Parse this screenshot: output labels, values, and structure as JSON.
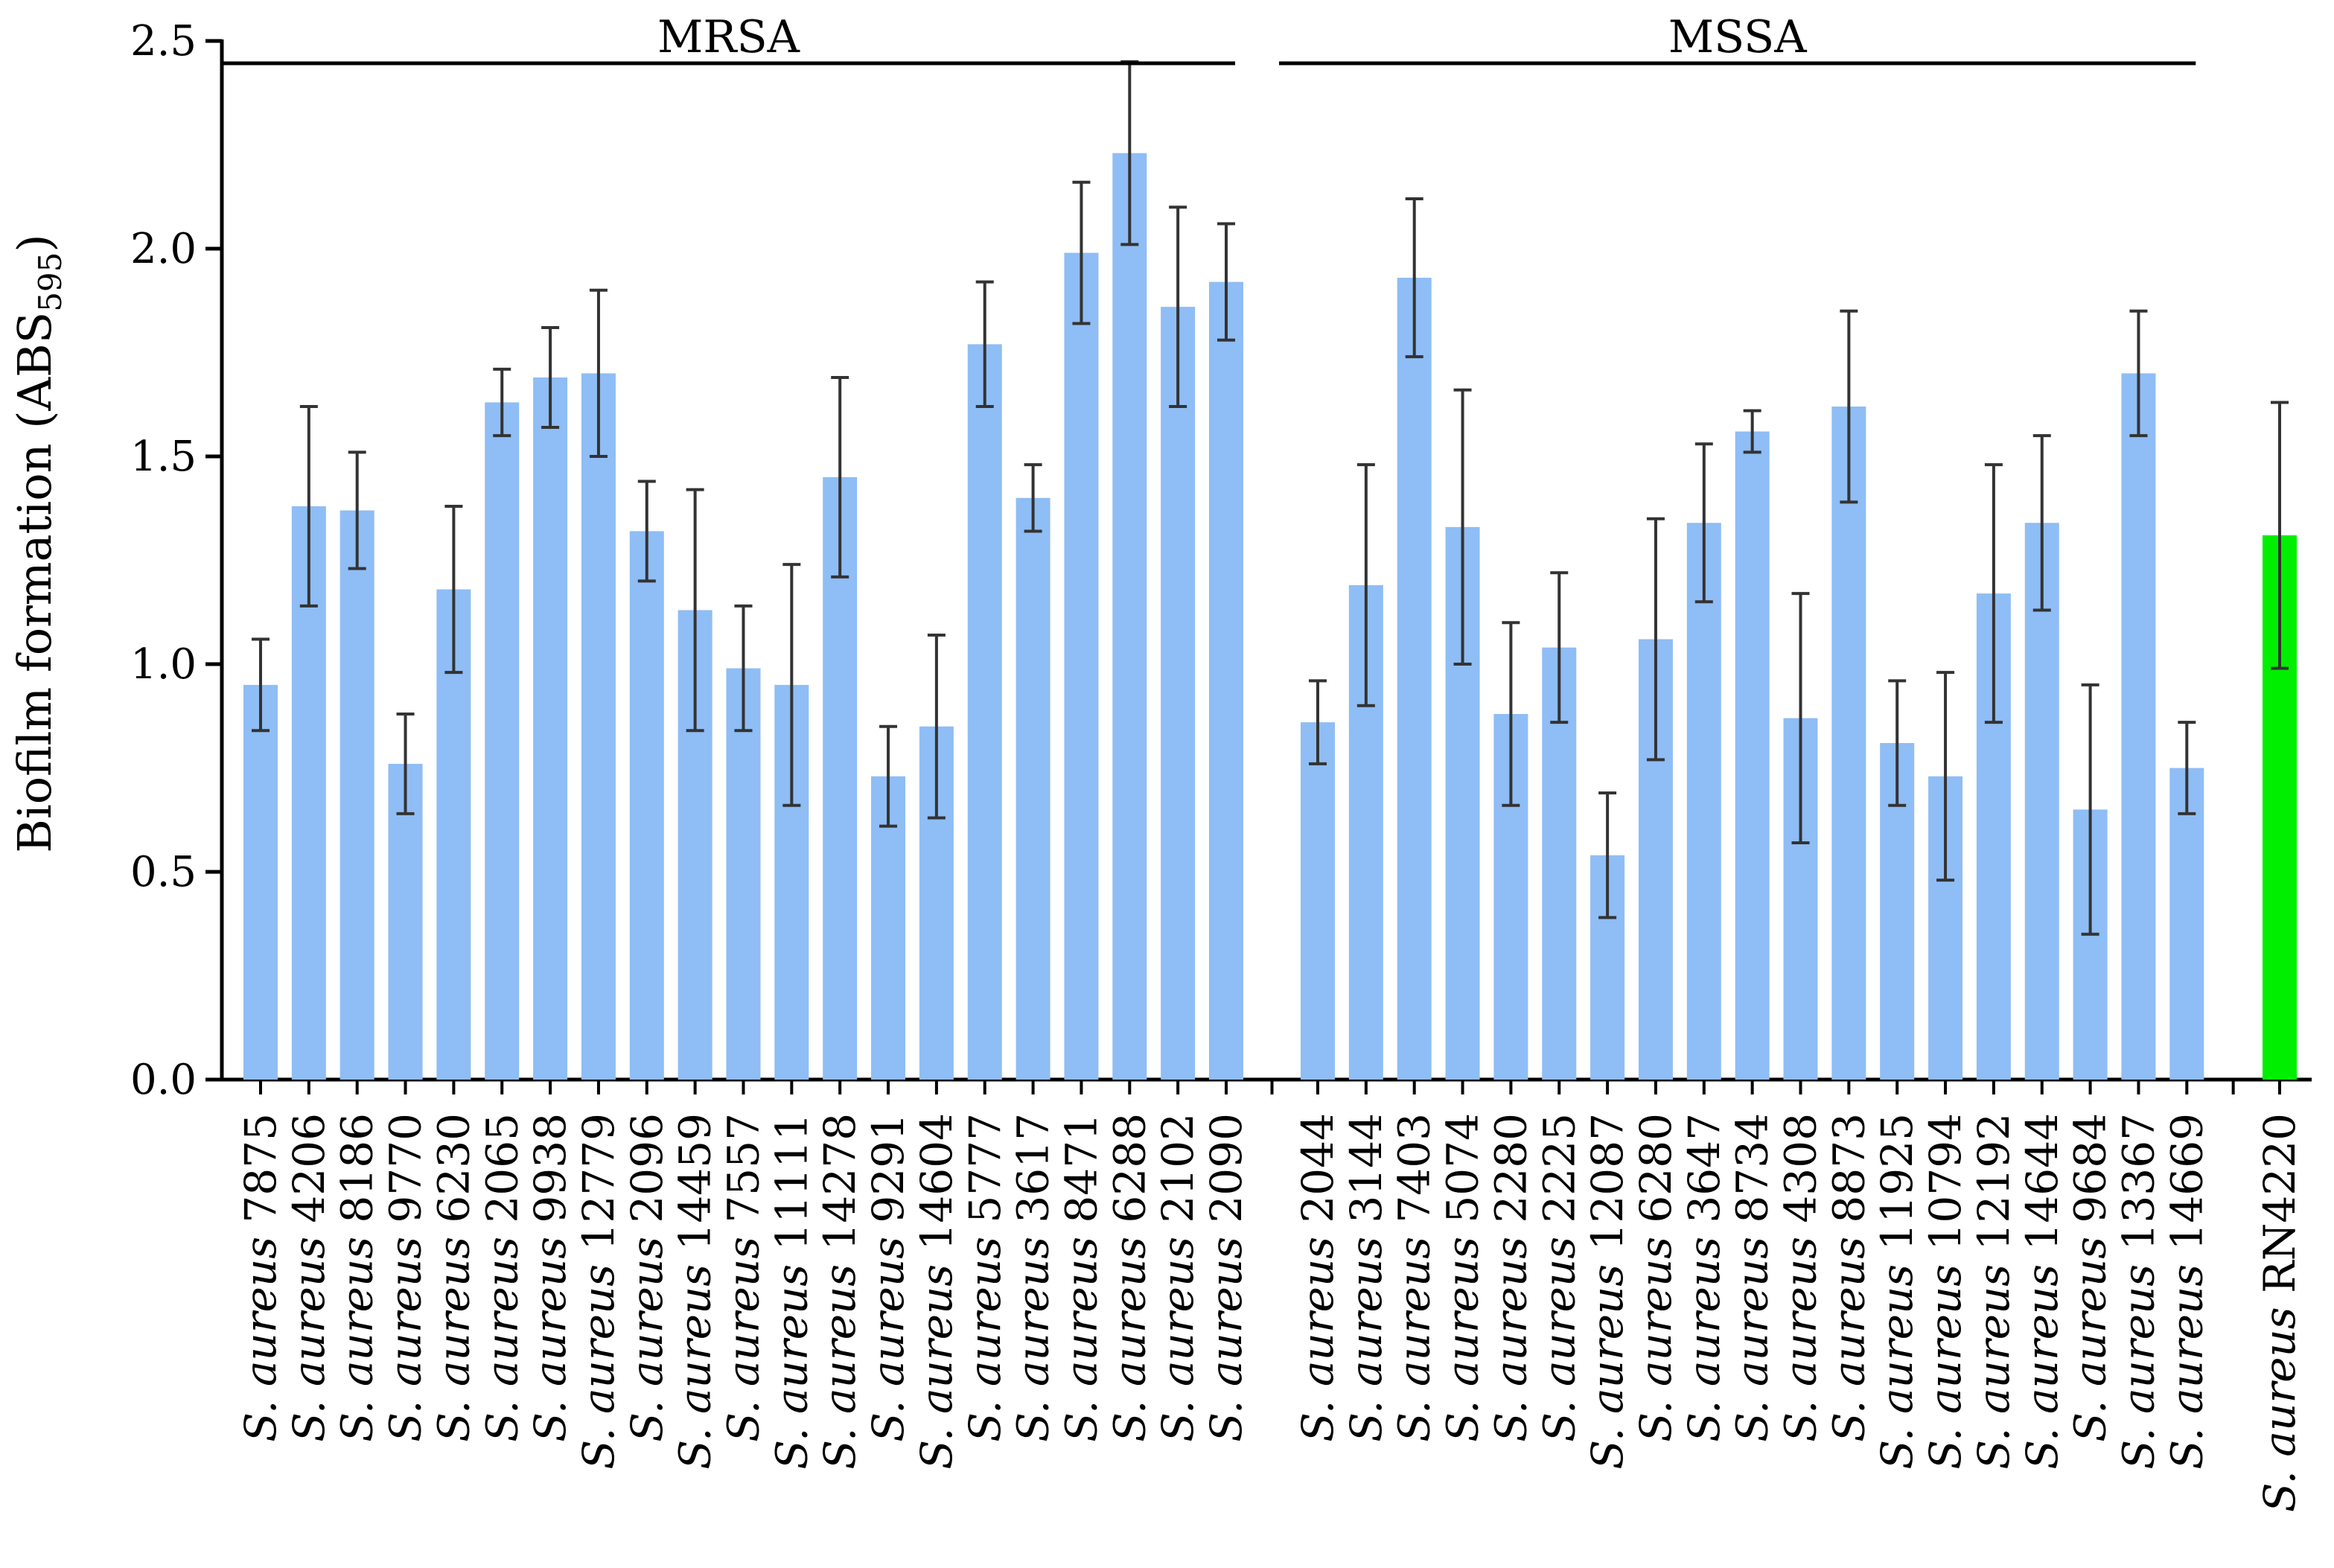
{
  "chart_data": {
    "type": "bar",
    "ylabel_prefix": "Biofilm formation (ABS",
    "ylabel_sub": "595",
    "ylabel_suffix": ")",
    "ylim": [
      0,
      2.5
    ],
    "yticks": [
      "0.0",
      "0.5",
      "1.0",
      "1.5",
      "2.0",
      "2.5"
    ],
    "colors": {
      "bar": "#8fbdf5",
      "reference": "#00ee00",
      "axis": "#000000",
      "error": "#333333"
    },
    "groups": [
      {
        "name": "MRSA",
        "items": [
          {
            "species": "S. aureus",
            "strain": "7875",
            "value": 0.95,
            "error": 0.11
          },
          {
            "species": "S. aureus",
            "strain": "4206",
            "value": 1.38,
            "error": 0.24
          },
          {
            "species": "S. aureus",
            "strain": "8186",
            "value": 1.37,
            "error": 0.14
          },
          {
            "species": "S. aureus",
            "strain": "9770",
            "value": 0.76,
            "error": 0.12
          },
          {
            "species": "S. aureus",
            "strain": "6230",
            "value": 1.18,
            "error": 0.2
          },
          {
            "species": "S. aureus",
            "strain": "2065",
            "value": 1.63,
            "error": 0.08
          },
          {
            "species": "S. aureus",
            "strain": "9938",
            "value": 1.69,
            "error": 0.12
          },
          {
            "species": "S. aureus",
            "strain": "12779",
            "value": 1.7,
            "error": 0.2
          },
          {
            "species": "S. aureus",
            "strain": "2096",
            "value": 1.32,
            "error": 0.12
          },
          {
            "species": "S. aureus",
            "strain": "14459",
            "value": 1.13,
            "error": 0.29
          },
          {
            "species": "S. aureus",
            "strain": "7557",
            "value": 0.99,
            "error": 0.15
          },
          {
            "species": "S. aureus",
            "strain": "11111",
            "value": 0.95,
            "error": 0.29
          },
          {
            "species": "S. aureus",
            "strain": "14278",
            "value": 1.45,
            "error": 0.24
          },
          {
            "species": "S. aureus",
            "strain": "9291",
            "value": 0.73,
            "error": 0.12
          },
          {
            "species": "S. aureus",
            "strain": "14604",
            "value": 0.85,
            "error": 0.22
          },
          {
            "species": "S. aureus",
            "strain": "5777",
            "value": 1.77,
            "error": 0.15
          },
          {
            "species": "S. aureus",
            "strain": "3617",
            "value": 1.4,
            "error": 0.08
          },
          {
            "species": "S. aureus",
            "strain": "8471",
            "value": 1.99,
            "error": 0.17
          },
          {
            "species": "S. aureus",
            "strain": "6288",
            "value": 2.23,
            "error": 0.22
          },
          {
            "species": "S. aureus",
            "strain": "2102",
            "value": 1.86,
            "error": 0.24
          },
          {
            "species": "S. aureus",
            "strain": "2090",
            "value": 1.92,
            "error": 0.14
          }
        ]
      },
      {
        "name": "MSSA",
        "items": [
          {
            "species": "S. aureus",
            "strain": "2044",
            "value": 0.86,
            "error": 0.1
          },
          {
            "species": "S. aureus",
            "strain": "3144",
            "value": 1.19,
            "error": 0.29
          },
          {
            "species": "S. aureus",
            "strain": "7403",
            "value": 1.93,
            "error": 0.19
          },
          {
            "species": "S. aureus",
            "strain": "5074",
            "value": 1.33,
            "error": 0.33
          },
          {
            "species": "S. aureus",
            "strain": "2280",
            "value": 0.88,
            "error": 0.22
          },
          {
            "species": "S. aureus",
            "strain": "2225",
            "value": 1.04,
            "error": 0.18
          },
          {
            "species": "S. aureus",
            "strain": "12087",
            "value": 0.54,
            "error": 0.15
          },
          {
            "species": "S. aureus",
            "strain": "6280",
            "value": 1.06,
            "error": 0.29
          },
          {
            "species": "S. aureus",
            "strain": "3647",
            "value": 1.34,
            "error": 0.19
          },
          {
            "species": "S. aureus",
            "strain": "8734",
            "value": 1.56,
            "error": 0.05
          },
          {
            "species": "S. aureus",
            "strain": "4308",
            "value": 0.87,
            "error": 0.3
          },
          {
            "species": "S. aureus",
            "strain": "8873",
            "value": 1.62,
            "error": 0.23
          },
          {
            "species": "S. aureus",
            "strain": "11925",
            "value": 0.81,
            "error": 0.15
          },
          {
            "species": "S. aureus",
            "strain": "10794",
            "value": 0.73,
            "error": 0.25
          },
          {
            "species": "S. aureus",
            "strain": "12192",
            "value": 1.17,
            "error": 0.31
          },
          {
            "species": "S. aureus",
            "strain": "14644",
            "value": 1.34,
            "error": 0.21
          },
          {
            "species": "S. aureus",
            "strain": "9684",
            "value": 0.65,
            "error": 0.3
          },
          {
            "species": "S. aureus",
            "strain": "13367",
            "value": 1.7,
            "error": 0.15
          },
          {
            "species": "S. aureus",
            "strain": "14669",
            "value": 0.75,
            "error": 0.11
          }
        ]
      }
    ],
    "reference": {
      "species": "S. aureus",
      "strain": "RN4220",
      "value": 1.31,
      "error": 0.32
    }
  }
}
